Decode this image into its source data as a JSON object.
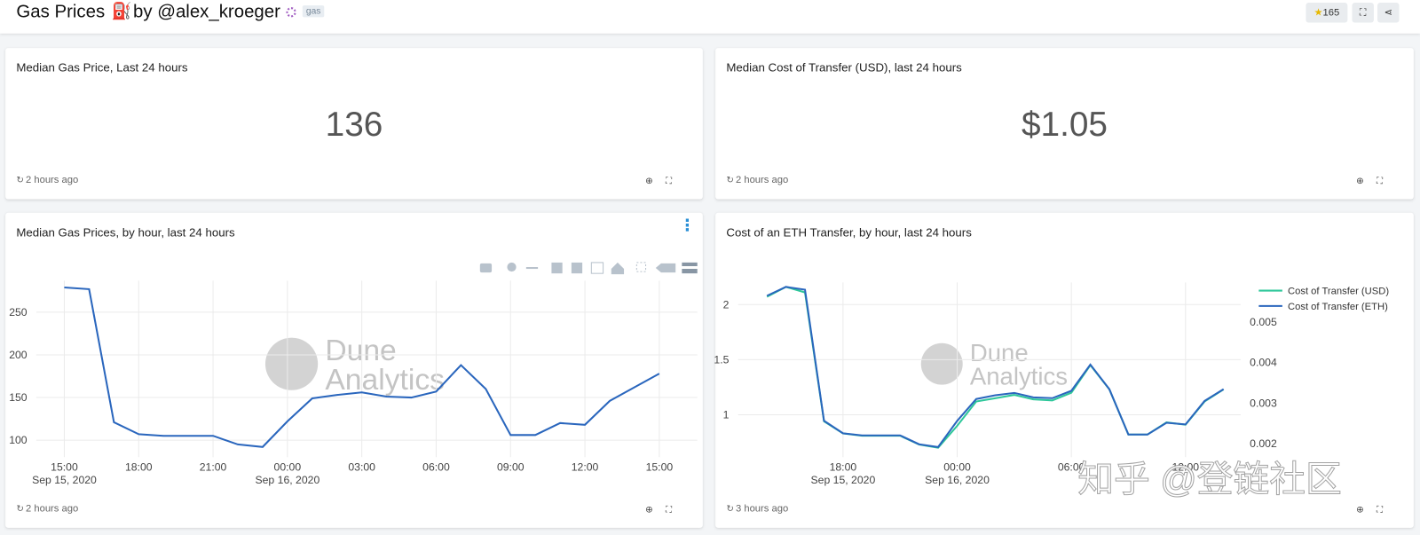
{
  "header": {
    "title": "Gas Prices",
    "icon": "⛽",
    "byline": "by @alex_kroeger",
    "tag": "gas",
    "stars": 165
  },
  "cards": [
    {
      "title": "Median Gas Price, Last 24 hours",
      "value": 136,
      "updated": "2 hours ago"
    },
    {
      "title": "Median Cost of Transfer (USD), last 24 hours",
      "value": "$1.05",
      "updated": "2 hours ago"
    }
  ],
  "chart_data": [
    {
      "type": "line",
      "title": "Median Gas Prices, by hour, last 24 hours",
      "updated": "2 hours ago",
      "watermark": {
        "line1": "Dune",
        "line2": "Analytics"
      },
      "x": [
        "2020-09-15 15:00",
        "2020-09-15 16:00",
        "2020-09-15 17:00",
        "2020-09-15 18:00",
        "2020-09-15 19:00",
        "2020-09-15 20:00",
        "2020-09-15 21:00",
        "2020-09-15 22:00",
        "2020-09-15 23:00",
        "2020-09-16 00:00",
        "2020-09-16 01:00",
        "2020-09-16 02:00",
        "2020-09-16 03:00",
        "2020-09-16 04:00",
        "2020-09-16 05:00",
        "2020-09-16 06:00",
        "2020-09-16 07:00",
        "2020-09-16 08:00",
        "2020-09-16 09:00",
        "2020-09-16 10:00",
        "2020-09-16 11:00",
        "2020-09-16 12:00",
        "2020-09-16 13:00",
        "2020-09-16 14:00",
        "2020-09-16 15:00"
      ],
      "values": [
        279,
        277,
        121,
        107,
        105,
        105,
        105,
        95,
        92,
        122,
        149,
        153,
        156,
        151,
        150,
        157,
        188,
        160,
        106,
        106,
        120,
        118,
        146,
        162,
        178
      ],
      "color": "#2a66bd",
      "xlim": [
        "2020-09-15 13:52",
        "2020-09-16 16:32"
      ],
      "xticks": [
        {
          "value": "2020-09-15 15:00",
          "label": "15:00",
          "sublabel": "Sep 15, 2020"
        },
        {
          "value": "2020-09-15 18:00",
          "label": "18:00"
        },
        {
          "value": "2020-09-15 21:00",
          "label": "21:00"
        },
        {
          "value": "2020-09-16 00:00",
          "label": "00:00",
          "sublabel": "Sep 16, 2020"
        },
        {
          "value": "2020-09-16 03:00",
          "label": "03:00"
        },
        {
          "value": "2020-09-16 06:00",
          "label": "06:00"
        },
        {
          "value": "2020-09-16 09:00",
          "label": "09:00"
        },
        {
          "value": "2020-09-16 12:00",
          "label": "12:00"
        },
        {
          "value": "2020-09-16 15:00",
          "label": "15:00"
        }
      ],
      "ylim": [
        80,
        287
      ],
      "yticks": [
        100,
        150,
        200,
        250
      ],
      "grid": true
    },
    {
      "type": "line",
      "title": "Cost of an ETH Transfer, by hour, last 24 hours",
      "updated": "3 hours ago",
      "watermark": {
        "line1": "Dune",
        "line2": "Analytics"
      },
      "x": [
        "2020-09-15 14:00",
        "2020-09-15 15:00",
        "2020-09-15 16:00",
        "2020-09-15 17:00",
        "2020-09-15 18:00",
        "2020-09-15 19:00",
        "2020-09-15 20:00",
        "2020-09-15 21:00",
        "2020-09-15 22:00",
        "2020-09-15 23:00",
        "2020-09-16 00:00",
        "2020-09-16 01:00",
        "2020-09-16 02:00",
        "2020-09-16 03:00",
        "2020-09-16 04:00",
        "2020-09-16 05:00",
        "2020-09-16 06:00",
        "2020-09-16 07:00",
        "2020-09-16 08:00",
        "2020-09-16 09:00",
        "2020-09-16 10:00",
        "2020-09-16 11:00",
        "2020-09-16 12:00",
        "2020-09-16 13:00",
        "2020-09-16 14:00"
      ],
      "series": [
        {
          "name": "Cost of Transfer (USD)",
          "color": "#2ec79a",
          "values": [
            2.07,
            2.16,
            2.11,
            0.94,
            0.83,
            0.81,
            0.81,
            0.81,
            0.73,
            0.7,
            0.9,
            1.12,
            1.15,
            1.18,
            1.14,
            1.13,
            1.2,
            1.45,
            1.23,
            0.82,
            0.82,
            0.93,
            0.91,
            1.12,
            1.23
          ]
        },
        {
          "name": "Cost of Transfer (ETH)",
          "color": "#2a66bd",
          "axis": "y2",
          "values": [
            0.00565,
            0.00587,
            0.0058,
            0.00256,
            0.00225,
            0.0022,
            0.0022,
            0.0022,
            0.00198,
            0.00191,
            0.00256,
            0.0031,
            0.00319,
            0.00325,
            0.00314,
            0.00312,
            0.0033,
            0.00395,
            0.00334,
            0.00222,
            0.00222,
            0.00251,
            0.00247,
            0.00305,
            0.00334
          ]
        }
      ],
      "xlim": [
        "2020-09-15 12:29",
        "2020-09-16 14:54"
      ],
      "xticks": [
        {
          "value": "2020-09-15 18:00",
          "label": "18:00",
          "sublabel": "Sep 15, 2020"
        },
        {
          "value": "2020-09-16 00:00",
          "label": "00:00",
          "sublabel": "Sep 16, 2020"
        },
        {
          "value": "2020-09-16 06:00",
          "label": "06:00"
        },
        {
          "value": "2020-09-16 12:00",
          "label": "12:00"
        }
      ],
      "ylim": [
        0.615,
        2.2
      ],
      "yticks": [
        1,
        1.5,
        2
      ],
      "y2lim": [
        0.00166,
        0.00598
      ],
      "y2ticks": [
        0.002,
        0.003,
        0.004,
        0.005
      ],
      "grid": true,
      "legend": "top-right"
    }
  ],
  "overlay_watermark": "知乎 @登链社区"
}
